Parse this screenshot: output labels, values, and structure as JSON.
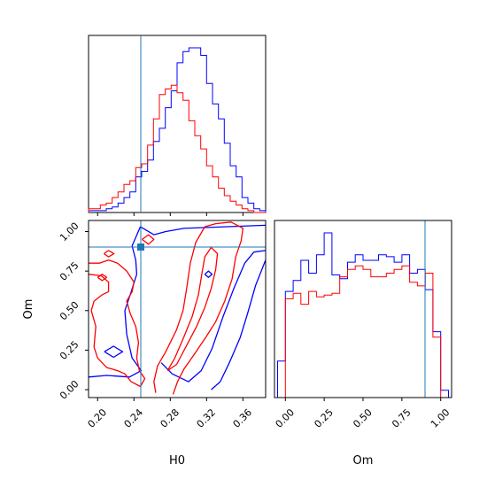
{
  "chart_data": {
    "type": "corner",
    "parameters": [
      "H0",
      "Om"
    ],
    "truth": {
      "H0": 0.245,
      "Om": 0.9
    },
    "series_colors": {
      "series_a": "#0000ff",
      "series_b": "#ff0000"
    },
    "truth_color": "#1f77b4",
    "panels": [
      {
        "id": "h0-marginal",
        "type": "histogram",
        "xlim": [
          0.19,
          0.385
        ],
        "xticks": [
          0.2,
          0.24,
          0.28,
          0.32,
          0.36
        ],
        "tick_labels_shown": false,
        "bin_edges": [
          0.19,
          0.1965,
          0.203,
          0.2095,
          0.216,
          0.2225,
          0.229,
          0.2355,
          0.242,
          0.2485,
          0.255,
          0.2615,
          0.268,
          0.2745,
          0.281,
          0.2875,
          0.294,
          0.3005,
          0.307,
          0.3135,
          0.32,
          0.3265,
          0.333,
          0.3395,
          0.346,
          0.3525,
          0.359,
          0.3655,
          0.372,
          0.3785,
          0.385
        ],
        "series": [
          {
            "color": "#0000ff",
            "values": [
              1,
              1,
              1,
              2,
              3,
              5,
              8,
              11,
              19,
              22,
              28,
              38,
              45,
              56,
              65,
              80,
              86,
              88,
              88,
              84,
              69,
              58,
              50,
              37,
              25,
              19,
              8,
              5,
              2,
              1
            ]
          },
          {
            "color": "#ff0000",
            "values": [
              2,
              2,
              4,
              5,
              8,
              11,
              15,
              17,
              24,
              26,
              36,
              50,
              63,
              66,
              68,
              64,
              60,
              49,
              41,
              34,
              25,
              19,
              13,
              9,
              6,
              4,
              2,
              1,
              0,
              0
            ]
          }
        ]
      },
      {
        "id": "h0-om-contour",
        "type": "contour",
        "xlim": [
          0.19,
          0.385
        ],
        "ylim": [
          -0.05,
          1.07
        ],
        "xticks": [
          0.2,
          0.24,
          0.28,
          0.32,
          0.36
        ],
        "yticks": [
          0.0,
          0.25,
          0.5,
          0.75,
          1.0
        ],
        "xtick_labels": [
          "0.20",
          "0.24",
          "0.28",
          "0.32",
          "0.36"
        ],
        "ytick_labels": [
          "0.00",
          "0.25",
          "0.50",
          "0.75",
          "1.00"
        ],
        "series": [
          {
            "color": "#0000ff",
            "contours": [
              [
                [
                  0.19,
                  0.08
                ],
                [
                  0.21,
                  0.09
                ],
                [
                  0.235,
                  0.08
                ],
                [
                  0.248,
                  0.12
                ],
                [
                  0.238,
                  0.2
                ],
                [
                  0.232,
                  0.35
                ],
                [
                  0.23,
                  0.5
                ],
                [
                  0.237,
                  0.62
                ],
                [
                  0.243,
                  0.73
                ],
                [
                  0.242,
                  0.82
                ],
                [
                  0.238,
                  0.91
                ],
                [
                  0.247,
                  1.03
                ],
                [
                  0.262,
                  0.98
                ],
                [
                  0.275,
                  1.0
                ],
                [
                  0.295,
                  1.02
                ],
                [
                  0.34,
                  1.03
                ],
                [
                  0.385,
                  1.04
                ]
              ],
              [
                [
                  0.27,
                  0.17
                ],
                [
                  0.282,
                  0.1
                ],
                [
                  0.3,
                  0.05
                ],
                [
                  0.314,
                  0.12
                ],
                [
                  0.326,
                  0.26
                ],
                [
                  0.338,
                  0.46
                ],
                [
                  0.35,
                  0.64
                ],
                [
                  0.362,
                  0.8
                ],
                [
                  0.372,
                  0.87
                ],
                [
                  0.385,
                  0.88
                ]
              ],
              [
                [
                  0.325,
                  0.0
                ],
                [
                  0.335,
                  0.05
                ],
                [
                  0.345,
                  0.17
                ],
                [
                  0.357,
                  0.33
                ],
                [
                  0.365,
                  0.48
                ],
                [
                  0.374,
                  0.66
                ],
                [
                  0.385,
                  0.82
                ]
              ],
              [
                [
                  0.2075,
                  0.24
                ],
                [
                  0.2175,
                  0.275
                ],
                [
                  0.2275,
                  0.24
                ],
                [
                  0.2175,
                  0.205
                ],
                [
                  0.2075,
                  0.24
                ]
              ],
              [
                [
                  0.318,
                  0.73
                ],
                [
                  0.322,
                  0.75
                ],
                [
                  0.326,
                  0.73
                ],
                [
                  0.322,
                  0.71
                ],
                [
                  0.318,
                  0.73
                ]
              ]
            ]
          },
          {
            "color": "#ff0000",
            "contours": [
              [
                [
                  0.19,
                  0.8
                ],
                [
                  0.202,
                  0.8
                ],
                [
                  0.212,
                  0.82
                ],
                [
                  0.222,
                  0.8
                ],
                [
                  0.232,
                  0.75
                ],
                [
                  0.24,
                  0.68
                ],
                [
                  0.238,
                  0.62
                ],
                [
                  0.232,
                  0.56
                ],
                [
                  0.236,
                  0.48
                ],
                [
                  0.242,
                  0.4
                ],
                [
                  0.245,
                  0.3
                ],
                [
                  0.243,
                  0.2
                ],
                [
                  0.246,
                  0.12
                ],
                [
                  0.252,
                  0.07
                ],
                [
                  0.247,
                  0.02
                ],
                [
                  0.237,
                  0.05
                ],
                [
                  0.23,
                  0.1
                ],
                [
                  0.222,
                  0.12
                ],
                [
                  0.21,
                  0.14
                ],
                [
                  0.2,
                  0.2
                ],
                [
                  0.196,
                  0.27
                ],
                [
                  0.198,
                  0.4
                ],
                [
                  0.193,
                  0.5
                ],
                [
                  0.196,
                  0.56
                ],
                [
                  0.205,
                  0.6
                ],
                [
                  0.212,
                  0.62
                ],
                [
                  0.212,
                  0.68
                ],
                [
                  0.204,
                  0.72
                ],
                [
                  0.19,
                  0.73
                ]
              ],
              [
                [
                  0.264,
                  -0.02
                ],
                [
                  0.262,
                  0.05
                ],
                [
                  0.266,
                  0.15
                ],
                [
                  0.275,
                  0.24
                ],
                [
                  0.287,
                  0.38
                ],
                [
                  0.294,
                  0.5
                ],
                [
                  0.298,
                  0.64
                ],
                [
                  0.302,
                  0.8
                ],
                [
                  0.308,
                  0.93
                ],
                [
                  0.318,
                  1.03
                ],
                [
                  0.33,
                  1.05
                ],
                [
                  0.347,
                  1.06
                ],
                [
                  0.36,
                  1.02
                ],
                [
                  0.358,
                  0.94
                ],
                [
                  0.352,
                  0.84
                ],
                [
                  0.348,
                  0.7
                ],
                [
                  0.34,
                  0.56
                ],
                [
                  0.33,
                  0.43
                ],
                [
                  0.319,
                  0.33
                ],
                [
                  0.306,
                  0.22
                ],
                [
                  0.295,
                  0.13
                ],
                [
                  0.288,
                  0.05
                ],
                [
                  0.283,
                  -0.03
                ]
              ],
              [
                [
                  0.277,
                  0.12
                ],
                [
                  0.285,
                  0.2
                ],
                [
                  0.294,
                  0.32
                ],
                [
                  0.304,
                  0.46
                ],
                [
                  0.311,
                  0.6
                ],
                [
                  0.315,
                  0.74
                ],
                [
                  0.318,
                  0.84
                ],
                [
                  0.325,
                  0.9
                ],
                [
                  0.332,
                  0.86
                ],
                [
                  0.33,
                  0.76
                ],
                [
                  0.325,
                  0.64
                ],
                [
                  0.318,
                  0.52
                ],
                [
                  0.309,
                  0.4
                ],
                [
                  0.298,
                  0.28
                ],
                [
                  0.287,
                  0.16
                ],
                [
                  0.277,
                  0.12
                ]
              ],
              [
                [
                  0.249,
                  0.95
                ],
                [
                  0.256,
                  0.98
                ],
                [
                  0.262,
                  0.95
                ],
                [
                  0.256,
                  0.92
                ],
                [
                  0.249,
                  0.95
                ]
              ],
              [
                [
                  0.207,
                  0.86
                ],
                [
                  0.212,
                  0.88
                ],
                [
                  0.218,
                  0.86
                ],
                [
                  0.212,
                  0.84
                ],
                [
                  0.207,
                  0.86
                ]
              ],
              [
                [
                  0.2,
                  0.71
                ],
                [
                  0.205,
                  0.73
                ],
                [
                  0.21,
                  0.71
                ],
                [
                  0.205,
                  0.69
                ],
                [
                  0.2,
                  0.71
                ]
              ]
            ]
          }
        ]
      },
      {
        "id": "om-marginal",
        "type": "histogram",
        "xlim": [
          -0.07,
          1.07
        ],
        "xticks": [
          0.0,
          0.25,
          0.5,
          0.75,
          1.0
        ],
        "xtick_labels": [
          "0.00",
          "0.25",
          "0.50",
          "0.75",
          "1.00"
        ],
        "bin_edges": [
          -0.05,
          0.0,
          0.05,
          0.1,
          0.15,
          0.2,
          0.25,
          0.3,
          0.35,
          0.4,
          0.45,
          0.5,
          0.55,
          0.6,
          0.65,
          0.7,
          0.75,
          0.8,
          0.85,
          0.9,
          0.95,
          1.0,
          1.05
        ],
        "series": [
          {
            "color": "#0000ff",
            "values": [
              20,
              58,
              64,
              75,
              68,
              78,
              90,
              67,
              65,
              74,
              78,
              75,
              75,
              78,
              77,
              74,
              78,
              68,
              70,
              59,
              36,
              4
            ]
          },
          {
            "color": "#ff0000",
            "values": [
              0,
              54,
              57,
              51,
              58,
              55,
              56,
              57,
              66,
              70,
              72,
              70,
              66,
              66,
              68,
              70,
              72,
              63,
              61,
              68,
              33,
              0
            ]
          }
        ]
      }
    ]
  }
}
